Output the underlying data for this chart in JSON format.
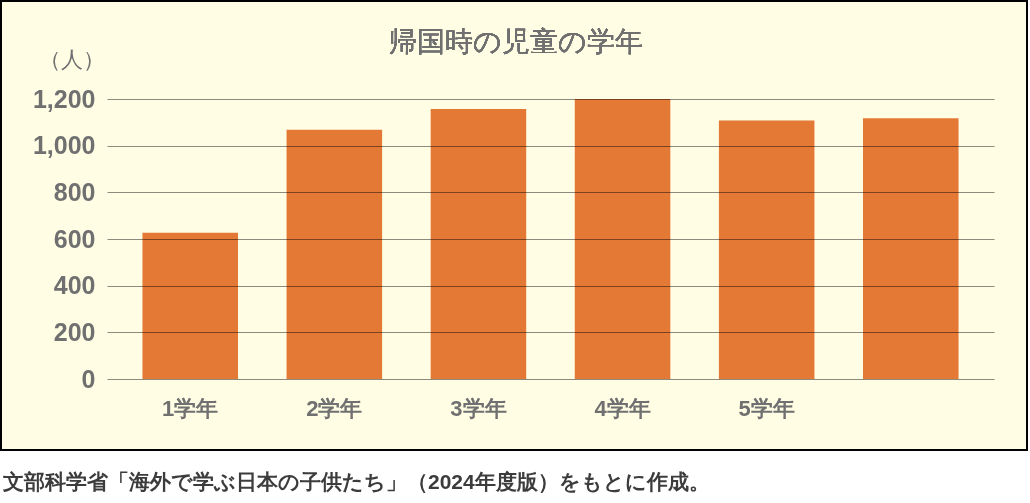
{
  "chart_data": {
    "type": "bar",
    "title": "帰国時の児童の学年",
    "ylabel": "（人）",
    "categories": [
      "1学年",
      "2学年",
      "3学年",
      "4学年",
      "5学年",
      null
    ],
    "values": [
      627,
      1068,
      1157,
      1200,
      1108,
      1117
    ],
    "color": "#e37935",
    "ylim": [
      0,
      1200
    ],
    "yticks": [
      0,
      200,
      400,
      600,
      800,
      {
        "value": 1000,
        "label": "1,000"
      },
      {
        "value": 1200,
        "label": "1,200"
      }
    ],
    "grid": "y",
    "annotations": [
      "文部科学省「海外で学ぶ日本の子供たち」（2024年度版）をもとに作成。"
    ]
  }
}
